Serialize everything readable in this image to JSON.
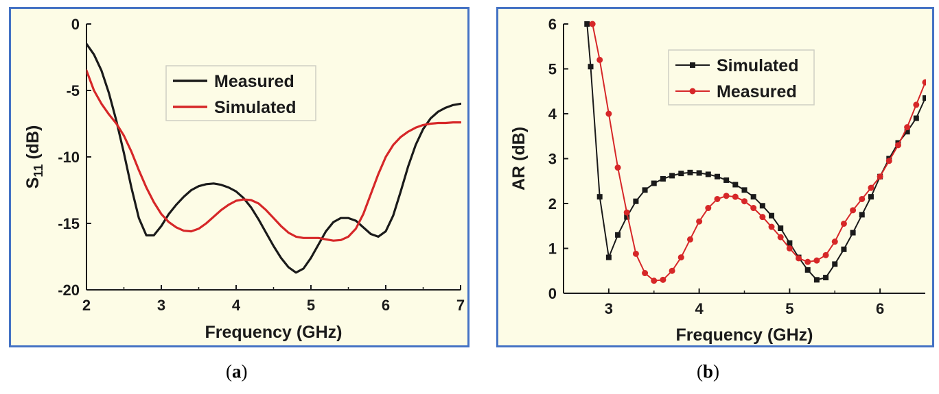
{
  "colors": {
    "border": "#4472C4",
    "panel_bg": "#FDFCE6",
    "black": "#1a1a1a",
    "red": "#d62728"
  },
  "captions": [
    {
      "open": "(",
      "letter": "a",
      "close": ")"
    },
    {
      "open": "(",
      "letter": "b",
      "close": ")"
    }
  ],
  "chart_data": [
    {
      "type": "line",
      "xlabel": "Frequency (GHz)",
      "ylabel": {
        "base": "S",
        "sub": "11",
        "rest": " (dB)"
      },
      "xlim": [
        2,
        7
      ],
      "ylim": [
        -20,
        0
      ],
      "xticks": [
        2,
        3,
        4,
        5,
        6,
        7
      ],
      "yticks": [
        0,
        -5,
        -10,
        -15,
        -20
      ],
      "legend": "top-center",
      "series": [
        {
          "name": "Measured",
          "color": "#1a1a1a",
          "markers": false,
          "points": [
            [
              2.0,
              -1.5
            ],
            [
              2.1,
              -2.3
            ],
            [
              2.2,
              -3.5
            ],
            [
              2.3,
              -5.2
            ],
            [
              2.4,
              -7.3
            ],
            [
              2.5,
              -9.7
            ],
            [
              2.6,
              -12.3
            ],
            [
              2.7,
              -14.6
            ],
            [
              2.8,
              -15.9
            ],
            [
              2.9,
              -15.9
            ],
            [
              3.0,
              -15.2
            ],
            [
              3.1,
              -14.3
            ],
            [
              3.2,
              -13.6
            ],
            [
              3.3,
              -13.0
            ],
            [
              3.4,
              -12.5
            ],
            [
              3.5,
              -12.2
            ],
            [
              3.6,
              -12.05
            ],
            [
              3.7,
              -12.0
            ],
            [
              3.8,
              -12.1
            ],
            [
              3.9,
              -12.3
            ],
            [
              4.0,
              -12.6
            ],
            [
              4.1,
              -13.1
            ],
            [
              4.2,
              -13.8
            ],
            [
              4.3,
              -14.7
            ],
            [
              4.4,
              -15.7
            ],
            [
              4.5,
              -16.7
            ],
            [
              4.6,
              -17.6
            ],
            [
              4.7,
              -18.3
            ],
            [
              4.8,
              -18.7
            ],
            [
              4.9,
              -18.4
            ],
            [
              5.0,
              -17.6
            ],
            [
              5.1,
              -16.6
            ],
            [
              5.2,
              -15.6
            ],
            [
              5.3,
              -14.9
            ],
            [
              5.4,
              -14.6
            ],
            [
              5.5,
              -14.6
            ],
            [
              5.6,
              -14.8
            ],
            [
              5.7,
              -15.3
            ],
            [
              5.8,
              -15.8
            ],
            [
              5.9,
              -16.0
            ],
            [
              6.0,
              -15.6
            ],
            [
              6.1,
              -14.4
            ],
            [
              6.2,
              -12.6
            ],
            [
              6.3,
              -10.7
            ],
            [
              6.4,
              -9.1
            ],
            [
              6.5,
              -7.9
            ],
            [
              6.6,
              -7.1
            ],
            [
              6.7,
              -6.6
            ],
            [
              6.8,
              -6.3
            ],
            [
              6.9,
              -6.1
            ],
            [
              7.0,
              -6.0
            ]
          ]
        },
        {
          "name": "Simulated",
          "color": "#d62728",
          "markers": false,
          "points": [
            [
              2.0,
              -3.5
            ],
            [
              2.1,
              -5.0
            ],
            [
              2.2,
              -6.0
            ],
            [
              2.3,
              -6.8
            ],
            [
              2.4,
              -7.5
            ],
            [
              2.5,
              -8.4
            ],
            [
              2.6,
              -9.6
            ],
            [
              2.7,
              -11.0
            ],
            [
              2.8,
              -12.3
            ],
            [
              2.9,
              -13.4
            ],
            [
              3.0,
              -14.3
            ],
            [
              3.1,
              -14.9
            ],
            [
              3.2,
              -15.3
            ],
            [
              3.3,
              -15.55
            ],
            [
              3.4,
              -15.6
            ],
            [
              3.5,
              -15.4
            ],
            [
              3.6,
              -15.0
            ],
            [
              3.7,
              -14.5
            ],
            [
              3.8,
              -14.0
            ],
            [
              3.9,
              -13.6
            ],
            [
              4.0,
              -13.3
            ],
            [
              4.1,
              -13.2
            ],
            [
              4.2,
              -13.25
            ],
            [
              4.3,
              -13.5
            ],
            [
              4.4,
              -14.0
            ],
            [
              4.5,
              -14.6
            ],
            [
              4.6,
              -15.2
            ],
            [
              4.7,
              -15.7
            ],
            [
              4.8,
              -16.0
            ],
            [
              4.9,
              -16.1
            ],
            [
              5.0,
              -16.1
            ],
            [
              5.1,
              -16.1
            ],
            [
              5.2,
              -16.2
            ],
            [
              5.3,
              -16.3
            ],
            [
              5.4,
              -16.25
            ],
            [
              5.5,
              -16.0
            ],
            [
              5.6,
              -15.4
            ],
            [
              5.7,
              -14.3
            ],
            [
              5.8,
              -12.8
            ],
            [
              5.9,
              -11.3
            ],
            [
              6.0,
              -10.0
            ],
            [
              6.1,
              -9.1
            ],
            [
              6.2,
              -8.5
            ],
            [
              6.3,
              -8.1
            ],
            [
              6.4,
              -7.8
            ],
            [
              6.5,
              -7.6
            ],
            [
              6.6,
              -7.5
            ],
            [
              6.7,
              -7.45
            ],
            [
              6.8,
              -7.45
            ],
            [
              6.9,
              -7.4
            ],
            [
              7.0,
              -7.4
            ]
          ]
        }
      ]
    },
    {
      "type": "line",
      "xlabel": "Frequency (GHz)",
      "ylabel": {
        "base": "AR (dB)",
        "sub": "",
        "rest": ""
      },
      "xlim": [
        2.5,
        6.5
      ],
      "ylim": [
        0,
        6
      ],
      "xticks": [
        3,
        4,
        5,
        6
      ],
      "yticks": [
        0,
        1,
        2,
        3,
        4,
        5,
        6
      ],
      "legend": "top-center",
      "series": [
        {
          "name": "Simulated",
          "color": "#1a1a1a",
          "markers": true,
          "marker": "square",
          "points": [
            [
              2.76,
              6.0
            ],
            [
              2.8,
              5.05
            ],
            [
              2.9,
              2.15
            ],
            [
              3.0,
              0.8
            ],
            [
              3.1,
              1.3
            ],
            [
              3.2,
              1.7
            ],
            [
              3.3,
              2.05
            ],
            [
              3.4,
              2.3
            ],
            [
              3.5,
              2.45
            ],
            [
              3.6,
              2.55
            ],
            [
              3.7,
              2.62
            ],
            [
              3.8,
              2.67
            ],
            [
              3.9,
              2.69
            ],
            [
              4.0,
              2.68
            ],
            [
              4.1,
              2.65
            ],
            [
              4.2,
              2.6
            ],
            [
              4.3,
              2.52
            ],
            [
              4.4,
              2.42
            ],
            [
              4.5,
              2.3
            ],
            [
              4.6,
              2.15
            ],
            [
              4.7,
              1.95
            ],
            [
              4.8,
              1.73
            ],
            [
              4.9,
              1.45
            ],
            [
              5.0,
              1.12
            ],
            [
              5.1,
              0.8
            ],
            [
              5.2,
              0.52
            ],
            [
              5.3,
              0.3
            ],
            [
              5.4,
              0.35
            ],
            [
              5.5,
              0.65
            ],
            [
              5.6,
              0.98
            ],
            [
              5.7,
              1.35
            ],
            [
              5.8,
              1.75
            ],
            [
              5.9,
              2.15
            ],
            [
              6.0,
              2.6
            ],
            [
              6.1,
              3.0
            ],
            [
              6.2,
              3.35
            ],
            [
              6.3,
              3.6
            ],
            [
              6.4,
              3.9
            ],
            [
              6.5,
              4.35
            ]
          ]
        },
        {
          "name": "Measured",
          "color": "#d62728",
          "markers": true,
          "marker": "circle",
          "points": [
            [
              2.82,
              6.0
            ],
            [
              2.9,
              5.2
            ],
            [
              3.0,
              4.0
            ],
            [
              3.1,
              2.8
            ],
            [
              3.2,
              1.8
            ],
            [
              3.3,
              0.88
            ],
            [
              3.4,
              0.45
            ],
            [
              3.5,
              0.28
            ],
            [
              3.6,
              0.3
            ],
            [
              3.7,
              0.5
            ],
            [
              3.8,
              0.8
            ],
            [
              3.9,
              1.2
            ],
            [
              4.0,
              1.6
            ],
            [
              4.1,
              1.9
            ],
            [
              4.2,
              2.1
            ],
            [
              4.3,
              2.17
            ],
            [
              4.4,
              2.15
            ],
            [
              4.5,
              2.05
            ],
            [
              4.6,
              1.9
            ],
            [
              4.7,
              1.7
            ],
            [
              4.8,
              1.48
            ],
            [
              4.9,
              1.25
            ],
            [
              5.0,
              1.0
            ],
            [
              5.1,
              0.78
            ],
            [
              5.2,
              0.7
            ],
            [
              5.3,
              0.73
            ],
            [
              5.4,
              0.85
            ],
            [
              5.5,
              1.15
            ],
            [
              5.6,
              1.55
            ],
            [
              5.7,
              1.85
            ],
            [
              5.8,
              2.1
            ],
            [
              5.9,
              2.35
            ],
            [
              6.0,
              2.6
            ],
            [
              6.1,
              2.95
            ],
            [
              6.2,
              3.3
            ],
            [
              6.3,
              3.7
            ],
            [
              6.4,
              4.2
            ],
            [
              6.5,
              4.7
            ]
          ]
        }
      ]
    }
  ]
}
